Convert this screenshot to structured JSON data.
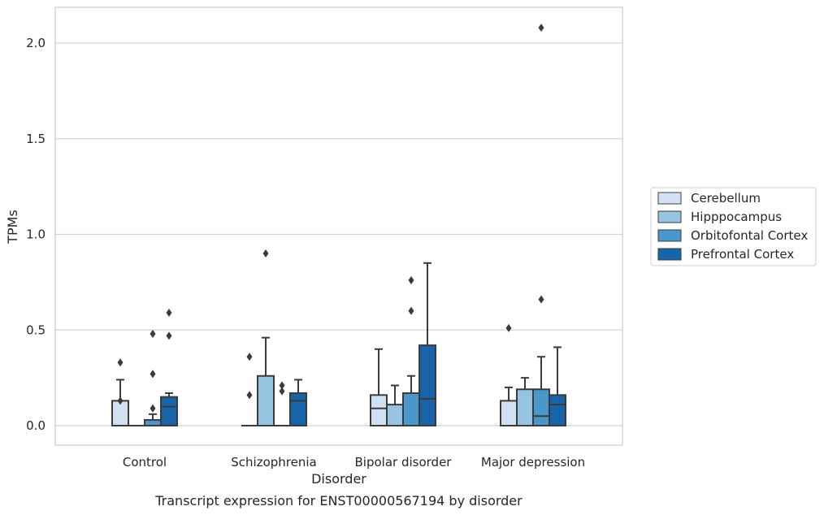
{
  "chart_data": {
    "type": "box",
    "title": "",
    "caption": "Transcript expression for ENST00000567194 by disorder",
    "xlabel": "Disorder",
    "ylabel": "TPMs",
    "ylim": [
      -0.1,
      2.19
    ],
    "yticks": [
      0.0,
      0.5,
      1.0,
      1.5,
      2.0
    ],
    "ytick_labels": [
      "0.0",
      "0.5",
      "1.0",
      "1.5",
      "2.0"
    ],
    "grid": true,
    "legend_position": "right",
    "categories": [
      "Control",
      "Schizophrenia",
      "Bipolar disorder",
      "Major depression"
    ],
    "series": [
      {
        "name": "Cerebellum",
        "color": "#d0e1f2",
        "boxes": [
          {
            "q1": 0.0,
            "median": 0.0,
            "q3": 0.13,
            "whisker_low": 0.0,
            "whisker_high": 0.24,
            "outliers": [
              0.33,
              0.13
            ]
          },
          {
            "q1": 0.0,
            "median": 0.0,
            "q3": 0.0,
            "whisker_low": 0.0,
            "whisker_high": 0.0,
            "outliers": [
              0.36,
              0.16
            ]
          },
          {
            "q1": 0.0,
            "median": 0.09,
            "q3": 0.16,
            "whisker_low": 0.0,
            "whisker_high": 0.4,
            "outliers": []
          },
          {
            "q1": 0.0,
            "median": 0.0,
            "q3": 0.13,
            "whisker_low": 0.0,
            "whisker_high": 0.2,
            "outliers": [
              0.51
            ]
          }
        ]
      },
      {
        "name": "Hipppocampus",
        "color": "#94c4df",
        "boxes": [
          {
            "q1": 0.0,
            "median": 0.0,
            "q3": 0.0,
            "whisker_low": 0.0,
            "whisker_high": 0.0,
            "outliers": []
          },
          {
            "q1": 0.0,
            "median": 0.0,
            "q3": 0.26,
            "whisker_low": 0.0,
            "whisker_high": 0.46,
            "outliers": [
              0.9
            ]
          },
          {
            "q1": 0.0,
            "median": 0.0,
            "q3": 0.11,
            "whisker_low": 0.0,
            "whisker_high": 0.21,
            "outliers": []
          },
          {
            "q1": 0.0,
            "median": 0.0,
            "q3": 0.19,
            "whisker_low": 0.0,
            "whisker_high": 0.25,
            "outliers": []
          }
        ]
      },
      {
        "name": "Orbitofontal Cortex",
        "color": "#4a98c9",
        "boxes": [
          {
            "q1": 0.0,
            "median": 0.0,
            "q3": 0.03,
            "whisker_low": 0.0,
            "whisker_high": 0.06,
            "outliers": [
              0.48,
              0.27,
              0.09
            ]
          },
          {
            "q1": 0.0,
            "median": 0.0,
            "q3": 0.0,
            "whisker_low": 0.0,
            "whisker_high": 0.0,
            "outliers": [
              0.21,
              0.18
            ]
          },
          {
            "q1": 0.0,
            "median": 0.0,
            "q3": 0.17,
            "whisker_low": 0.0,
            "whisker_high": 0.26,
            "outliers": [
              0.76,
              0.6
            ]
          },
          {
            "q1": 0.0,
            "median": 0.05,
            "q3": 0.19,
            "whisker_low": 0.0,
            "whisker_high": 0.36,
            "outliers": [
              2.08,
              0.66
            ]
          }
        ]
      },
      {
        "name": "Prefrontal Cortex",
        "color": "#1764ab",
        "boxes": [
          {
            "q1": 0.0,
            "median": 0.1,
            "q3": 0.15,
            "whisker_low": 0.0,
            "whisker_high": 0.17,
            "outliers": [
              0.59,
              0.47
            ]
          },
          {
            "q1": 0.0,
            "median": 0.13,
            "q3": 0.17,
            "whisker_low": 0.0,
            "whisker_high": 0.24,
            "outliers": []
          },
          {
            "q1": 0.0,
            "median": 0.14,
            "q3": 0.42,
            "whisker_low": 0.0,
            "whisker_high": 0.85,
            "outliers": []
          },
          {
            "q1": 0.0,
            "median": 0.11,
            "q3": 0.16,
            "whisker_low": 0.0,
            "whisker_high": 0.41,
            "outliers": []
          }
        ]
      }
    ]
  }
}
